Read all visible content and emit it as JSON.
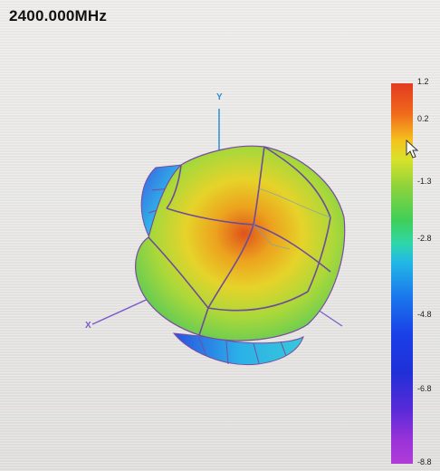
{
  "title": "2400.000MHz",
  "axes": {
    "x": "X",
    "y": "Y"
  },
  "colorbar": {
    "ticks": [
      "1.2",
      "0.2",
      "-1.3",
      "-2.8",
      "-4.8",
      "-6.8",
      "-8.8"
    ]
  },
  "colors": {
    "accent_high": "#e23a20",
    "accent_low": "#b03cd8",
    "axis_x": "#7b5cc9",
    "axis_y": "#2a8fd6",
    "mesh": "#7a4aa0"
  }
}
